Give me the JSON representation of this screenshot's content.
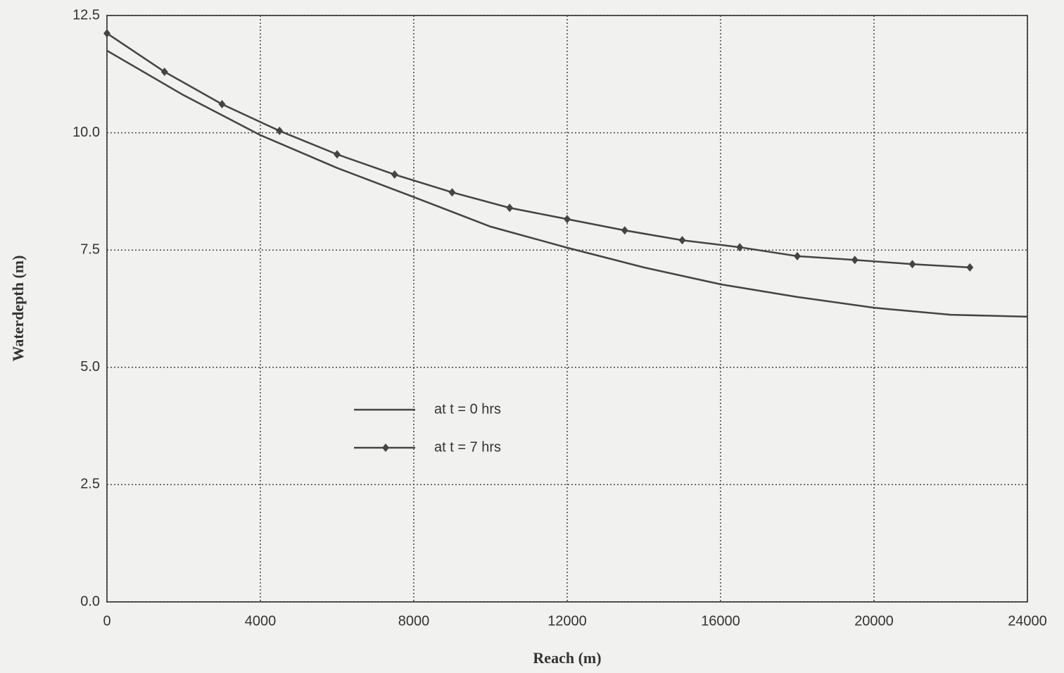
{
  "chart_data": {
    "type": "line",
    "xlabel": "Reach (m)",
    "ylabel": "Waterdepth (m)",
    "xlim": [
      0,
      24000
    ],
    "xticks": [
      0,
      4000,
      8000,
      12000,
      16000,
      20000,
      24000
    ],
    "ylim": [
      0,
      12.5
    ],
    "yticks": [
      {
        "value": 0,
        "label": "0.0"
      },
      {
        "value": 2.5,
        "label": "2.5"
      },
      {
        "value": 5,
        "label": "5.0"
      },
      {
        "value": 7.5,
        "label": "7.5"
      },
      {
        "value": 10,
        "label": "10.0"
      },
      {
        "value": 12.5,
        "label": "12.5"
      }
    ],
    "grid": true,
    "series": [
      {
        "name": "at t = 0 hrs",
        "color": "#444444",
        "markers": false,
        "x": [
          0,
          2000,
          4000,
          6000,
          8000,
          10000,
          12000,
          14000,
          16000,
          18000,
          20000,
          22000,
          24000
        ],
        "values": [
          11.75,
          10.8,
          9.95,
          9.25,
          8.63,
          8.0,
          7.55,
          7.13,
          6.77,
          6.5,
          6.27,
          6.12,
          6.08
        ]
      },
      {
        "name": "at t = 7 hrs",
        "color": "#444444",
        "markers": true,
        "x": [
          0,
          1500,
          3000,
          4500,
          6000,
          7500,
          9000,
          10500,
          12000,
          13500,
          15000,
          16500,
          18000,
          19500,
          21000,
          22500
        ],
        "values": [
          12.12,
          11.3,
          10.61,
          10.04,
          9.54,
          9.11,
          8.73,
          8.4,
          8.16,
          7.92,
          7.71,
          7.56,
          7.37,
          7.29,
          7.2,
          7.13
        ]
      }
    ]
  }
}
